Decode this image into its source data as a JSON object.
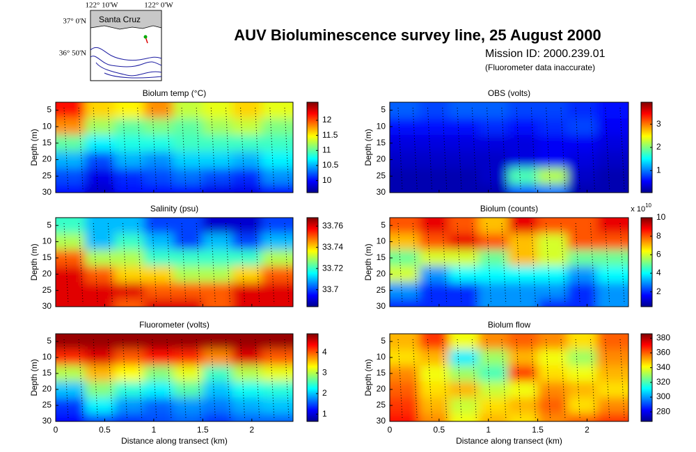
{
  "title": "AUV Bioluminescence survey line, 25 August 2000",
  "subtitle": "Mission ID: 2000.239.01",
  "note": "(Fluorometer data inaccurate)",
  "map": {
    "lon_labels": [
      "122° 10'W",
      "122° 0'W"
    ],
    "lat_labels": [
      "37° 0'N",
      "36° 50'N"
    ],
    "place": "Santa Cruz"
  },
  "chart_data": [
    {
      "type": "heatmap",
      "title": "Biolum temp (°C)",
      "ylabel": "Depth (m)",
      "colormap": "jet",
      "x": [
        0.15,
        0.45,
        0.75,
        1.05,
        1.35,
        1.65,
        1.95,
        2.25
      ],
      "y": [
        5,
        10,
        15,
        20,
        25,
        30
      ],
      "z": [
        [
          12.2,
          11.6,
          11.5,
          11.8,
          11.3,
          11.4,
          11.6,
          11.4
        ],
        [
          11.8,
          11.2,
          11.0,
          11.1,
          11.0,
          11.2,
          11.3,
          11.1
        ],
        [
          11.0,
          10.7,
          10.8,
          10.8,
          10.9,
          10.9,
          10.9,
          10.9
        ],
        [
          10.5,
          10.2,
          10.5,
          10.4,
          10.6,
          10.6,
          10.5,
          10.7
        ],
        [
          10.2,
          9.9,
          10.1,
          10.2,
          10.3,
          10.2,
          10.1,
          10.4
        ],
        [
          10.0,
          9.8,
          10.0,
          10.0,
          10.0,
          9.9,
          9.9,
          10.0
        ]
      ],
      "xlim": [
        0,
        2.42
      ],
      "ylim": [
        2.6,
        30
      ],
      "yreverse": true,
      "xticks": [
        0,
        0.5,
        1,
        1.5,
        2
      ],
      "yticks": [
        5,
        10,
        15,
        20,
        25,
        30
      ],
      "clim": [
        9.6,
        12.6
      ],
      "cticks": [
        10,
        10.5,
        11,
        11.5,
        12
      ]
    },
    {
      "type": "heatmap",
      "title": "OBS (volts)",
      "ylabel": "Depth (m)",
      "colormap": "jet",
      "x": [
        0.15,
        0.45,
        0.75,
        1.05,
        1.35,
        1.65,
        1.95,
        2.25
      ],
      "y": [
        5,
        10,
        15,
        20,
        25,
        30
      ],
      "z": [
        [
          0.9,
          0.8,
          0.9,
          0.9,
          0.8,
          0.8,
          0.7,
          0.6
        ],
        [
          0.6,
          0.6,
          0.6,
          0.7,
          0.6,
          0.7,
          0.8,
          0.5
        ],
        [
          0.4,
          0.4,
          0.4,
          0.4,
          0.4,
          0.5,
          0.5,
          0.4
        ],
        [
          0.3,
          0.3,
          0.3,
          0.3,
          0.4,
          0.5,
          0.4,
          0.3
        ],
        [
          0.2,
          0.2,
          0.2,
          0.3,
          1.8,
          2.2,
          0.3,
          0.2
        ],
        [
          0.2,
          0.2,
          0.2,
          0.2,
          0.9,
          1.0,
          0.2,
          0.2
        ]
      ],
      "xlim": [
        0,
        2.42
      ],
      "ylim": [
        2.6,
        30
      ],
      "yreverse": true,
      "xticks": [
        0,
        0.5,
        1,
        1.5,
        2
      ],
      "yticks": [
        5,
        10,
        15,
        20,
        25,
        30
      ],
      "clim": [
        0.05,
        3.95
      ],
      "cticks": [
        1,
        2,
        3
      ]
    },
    {
      "type": "heatmap",
      "title": "Salinity (psu)",
      "ylabel": "Depth (m)",
      "colormap": "jet",
      "x": [
        0.15,
        0.45,
        0.75,
        1.05,
        1.35,
        1.65,
        1.95,
        2.25
      ],
      "y": [
        5,
        10,
        15,
        20,
        25,
        30
      ],
      "z": [
        [
          33.72,
          33.71,
          33.71,
          33.7,
          33.7,
          33.69,
          33.69,
          33.7
        ],
        [
          33.73,
          33.71,
          33.72,
          33.71,
          33.7,
          33.71,
          33.7,
          33.71
        ],
        [
          33.75,
          33.73,
          33.73,
          33.72,
          33.72,
          33.72,
          33.72,
          33.73
        ],
        [
          33.76,
          33.75,
          33.74,
          33.74,
          33.73,
          33.73,
          33.74,
          33.75
        ],
        [
          33.76,
          33.76,
          33.76,
          33.75,
          33.75,
          33.75,
          33.76,
          33.76
        ],
        [
          33.76,
          33.76,
          33.75,
          33.76,
          33.76,
          33.75,
          33.76,
          33.76
        ]
      ],
      "xlim": [
        0,
        2.42
      ],
      "ylim": [
        2.6,
        30
      ],
      "yreverse": true,
      "xticks": [
        0,
        0.5,
        1,
        1.5,
        2
      ],
      "yticks": [
        5,
        10,
        15,
        20,
        25,
        30
      ],
      "clim": [
        33.684,
        33.768
      ],
      "cticks": [
        33.7,
        33.72,
        33.74,
        33.76
      ]
    },
    {
      "type": "heatmap",
      "title": "Biolum (counts)",
      "ylabel": "Depth (m)",
      "colormap": "jet",
      "x": [
        0.15,
        0.45,
        0.75,
        1.05,
        1.35,
        1.65,
        1.95,
        2.25
      ],
      "y": [
        5,
        10,
        15,
        20,
        25,
        30
      ],
      "z": [
        [
          8,
          9,
          8,
          7,
          9,
          8,
          8,
          9
        ],
        [
          7,
          8,
          9,
          8,
          7,
          6,
          8,
          8
        ],
        [
          5,
          6,
          6,
          5,
          7,
          6,
          5,
          5
        ],
        [
          6,
          3,
          4,
          4,
          4,
          4,
          3,
          4
        ],
        [
          3,
          2,
          2,
          3,
          3,
          3,
          2,
          3
        ],
        [
          2,
          2,
          2,
          3,
          3,
          2,
          2,
          3
        ]
      ],
      "xlim": [
        0,
        2.42
      ],
      "ylim": [
        2.6,
        30
      ],
      "yreverse": true,
      "xticks": [
        0,
        0.5,
        1,
        1.5,
        2
      ],
      "yticks": [
        5,
        10,
        15,
        20,
        25,
        30
      ],
      "clim": [
        0.4,
        10
      ],
      "cticks": [
        2,
        4,
        6,
        8,
        10
      ],
      "cscale_label": "x 10",
      "cscale_exponent": 10
    },
    {
      "type": "heatmap",
      "title": "Fluorometer (volts)",
      "ylabel": "Depth (m)",
      "xlabel": "Distance along transect (km)",
      "colormap": "jet",
      "x": [
        0.15,
        0.45,
        0.75,
        1.05,
        1.35,
        1.65,
        1.95,
        2.25
      ],
      "y": [
        5,
        10,
        15,
        20,
        25,
        30
      ],
      "z": [
        [
          4.8,
          4.8,
          4.8,
          4.8,
          4.8,
          4.8,
          4.8,
          4.8
        ],
        [
          4.2,
          4.5,
          4.0,
          4.3,
          4.2,
          3.8,
          4.5,
          4.0
        ],
        [
          3.0,
          3.6,
          3.3,
          2.8,
          3.2,
          2.5,
          3.0,
          3.2
        ],
        [
          2.0,
          2.8,
          2.4,
          2.2,
          2.6,
          2.0,
          2.3,
          2.4
        ],
        [
          1.4,
          2.2,
          1.8,
          1.6,
          1.8,
          1.7,
          1.9,
          2.0
        ],
        [
          1.2,
          1.5,
          1.4,
          1.5,
          1.6,
          1.4,
          1.6,
          1.6
        ]
      ],
      "xlim": [
        0,
        2.42
      ],
      "ylim": [
        2.6,
        30
      ],
      "yreverse": true,
      "xticks": [
        0,
        0.5,
        1,
        1.5,
        2
      ],
      "yticks": [
        5,
        10,
        15,
        20,
        25,
        30
      ],
      "clim": [
        0.65,
        4.9
      ],
      "cticks": [
        1,
        2,
        3,
        4
      ]
    },
    {
      "type": "heatmap",
      "title": "Biolum flow",
      "ylabel": "Depth (m)",
      "xlabel": "Distance along transect (km)",
      "colormap": "jet",
      "x": [
        0.15,
        0.45,
        0.75,
        1.05,
        1.35,
        1.65,
        1.95,
        2.25
      ],
      "y": [
        5,
        10,
        15,
        20,
        25,
        30
      ],
      "z": [
        [
          350,
          365,
          340,
          355,
          360,
          355,
          345,
          360
        ],
        [
          345,
          350,
          310,
          330,
          350,
          340,
          330,
          355
        ],
        [
          355,
          340,
          330,
          320,
          365,
          345,
          340,
          350
        ],
        [
          360,
          345,
          350,
          335,
          340,
          355,
          350,
          345
        ],
        [
          365,
          350,
          335,
          345,
          350,
          360,
          345,
          355
        ],
        [
          370,
          355,
          340,
          350,
          345,
          355,
          360,
          365
        ]
      ],
      "xlim": [
        0,
        2.42
      ],
      "ylim": [
        2.6,
        30
      ],
      "yreverse": true,
      "xticks": [
        0,
        0.5,
        1,
        1.5,
        2
      ],
      "yticks": [
        5,
        10,
        15,
        20,
        25,
        30
      ],
      "clim": [
        267,
        386
      ],
      "cticks": [
        280,
        300,
        320,
        340,
        360,
        380
      ]
    }
  ]
}
